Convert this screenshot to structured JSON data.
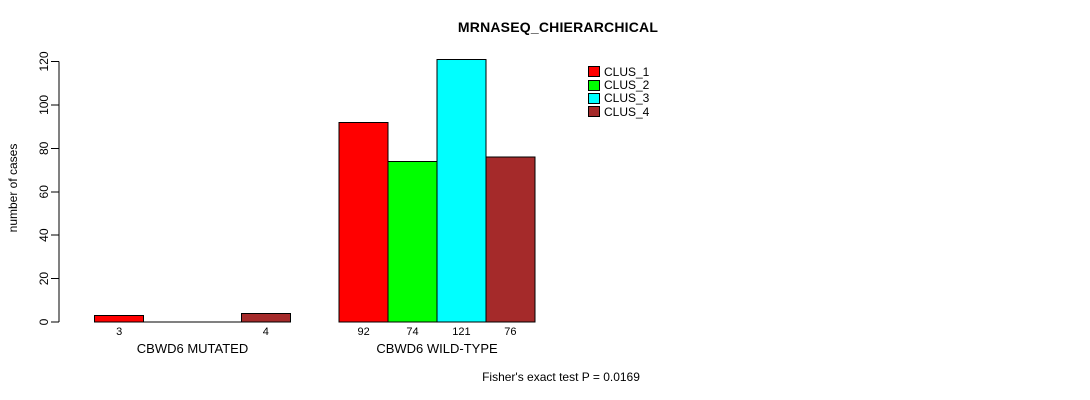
{
  "figure": {
    "background": "#FFFFFF",
    "text_color": "#000000"
  },
  "chart_data": {
    "type": "bar",
    "title": "MRNASEQ_CHIERARCHICAL",
    "ylabel": "number of cases",
    "xlabel": "",
    "ylim": [
      0,
      120
    ],
    "yticks": [
      0,
      20,
      40,
      60,
      80,
      100,
      120
    ],
    "grid": false,
    "legend_position": "top-right",
    "categories": [
      "CBWD6 MUTATED",
      "CBWD6 WILD-TYPE"
    ],
    "series": [
      {
        "name": "CLUS_1",
        "color": "#FF0000",
        "values": [
          3,
          92
        ]
      },
      {
        "name": "CLUS_2",
        "color": "#00FF00",
        "values": [
          0,
          74
        ]
      },
      {
        "name": "CLUS_3",
        "color": "#00FFFF",
        "values": [
          0,
          121
        ]
      },
      {
        "name": "CLUS_4",
        "color": "#A52A2A",
        "values": [
          4,
          76
        ]
      }
    ],
    "value_labels": true,
    "hide_zero_value_labels": true,
    "annotation": "Fisher's exact test P = 0.0169"
  }
}
